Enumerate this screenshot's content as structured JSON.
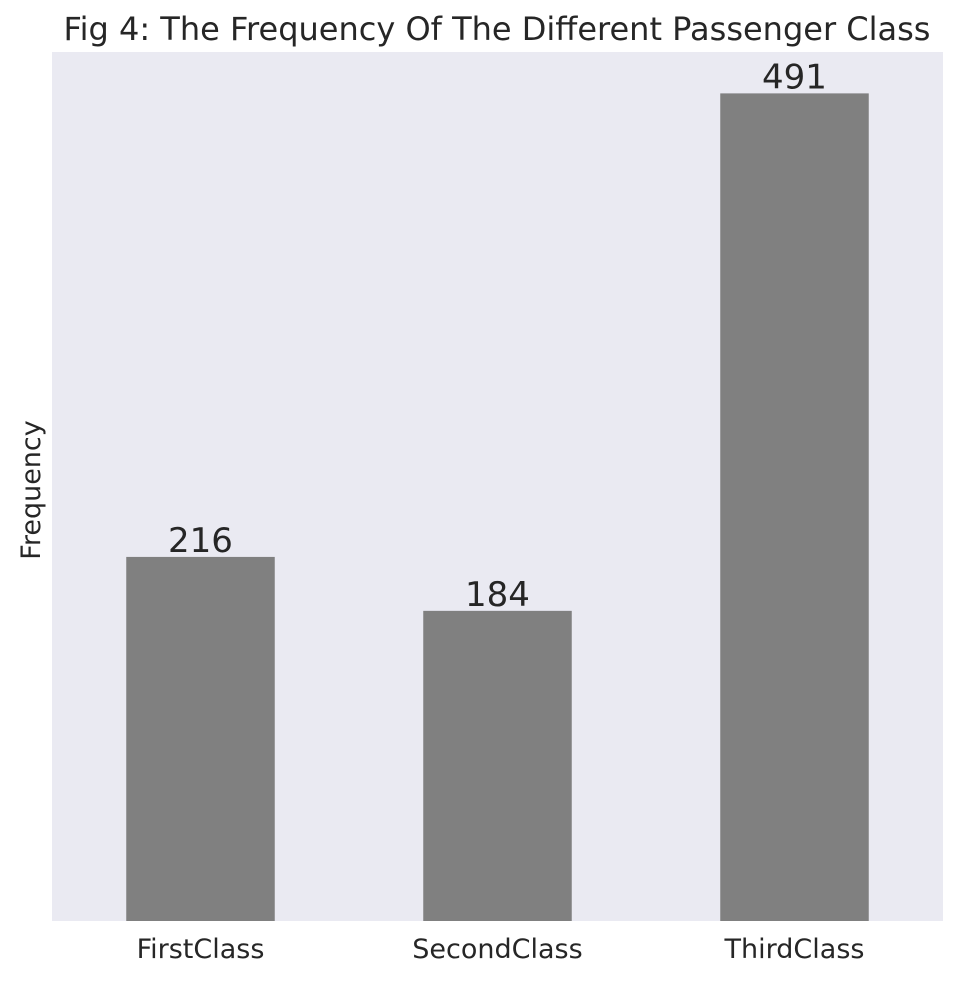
{
  "chart_data": {
    "type": "bar",
    "title": "Fig 4: The Frequency Of The Different Passenger Class",
    "xlabel": "",
    "ylabel": "Frequency",
    "categories": [
      "FirstClass",
      "SecondClass",
      "ThirdClass"
    ],
    "values": [
      216,
      184,
      491
    ],
    "data_labels": [
      "216",
      "184",
      "491"
    ],
    "ylim": [
      0,
      515.55
    ],
    "grid": false,
    "legend": "none",
    "colors": {
      "bar": "#808080",
      "plot_background": "#eaeaf2",
      "text": "#262626"
    }
  }
}
